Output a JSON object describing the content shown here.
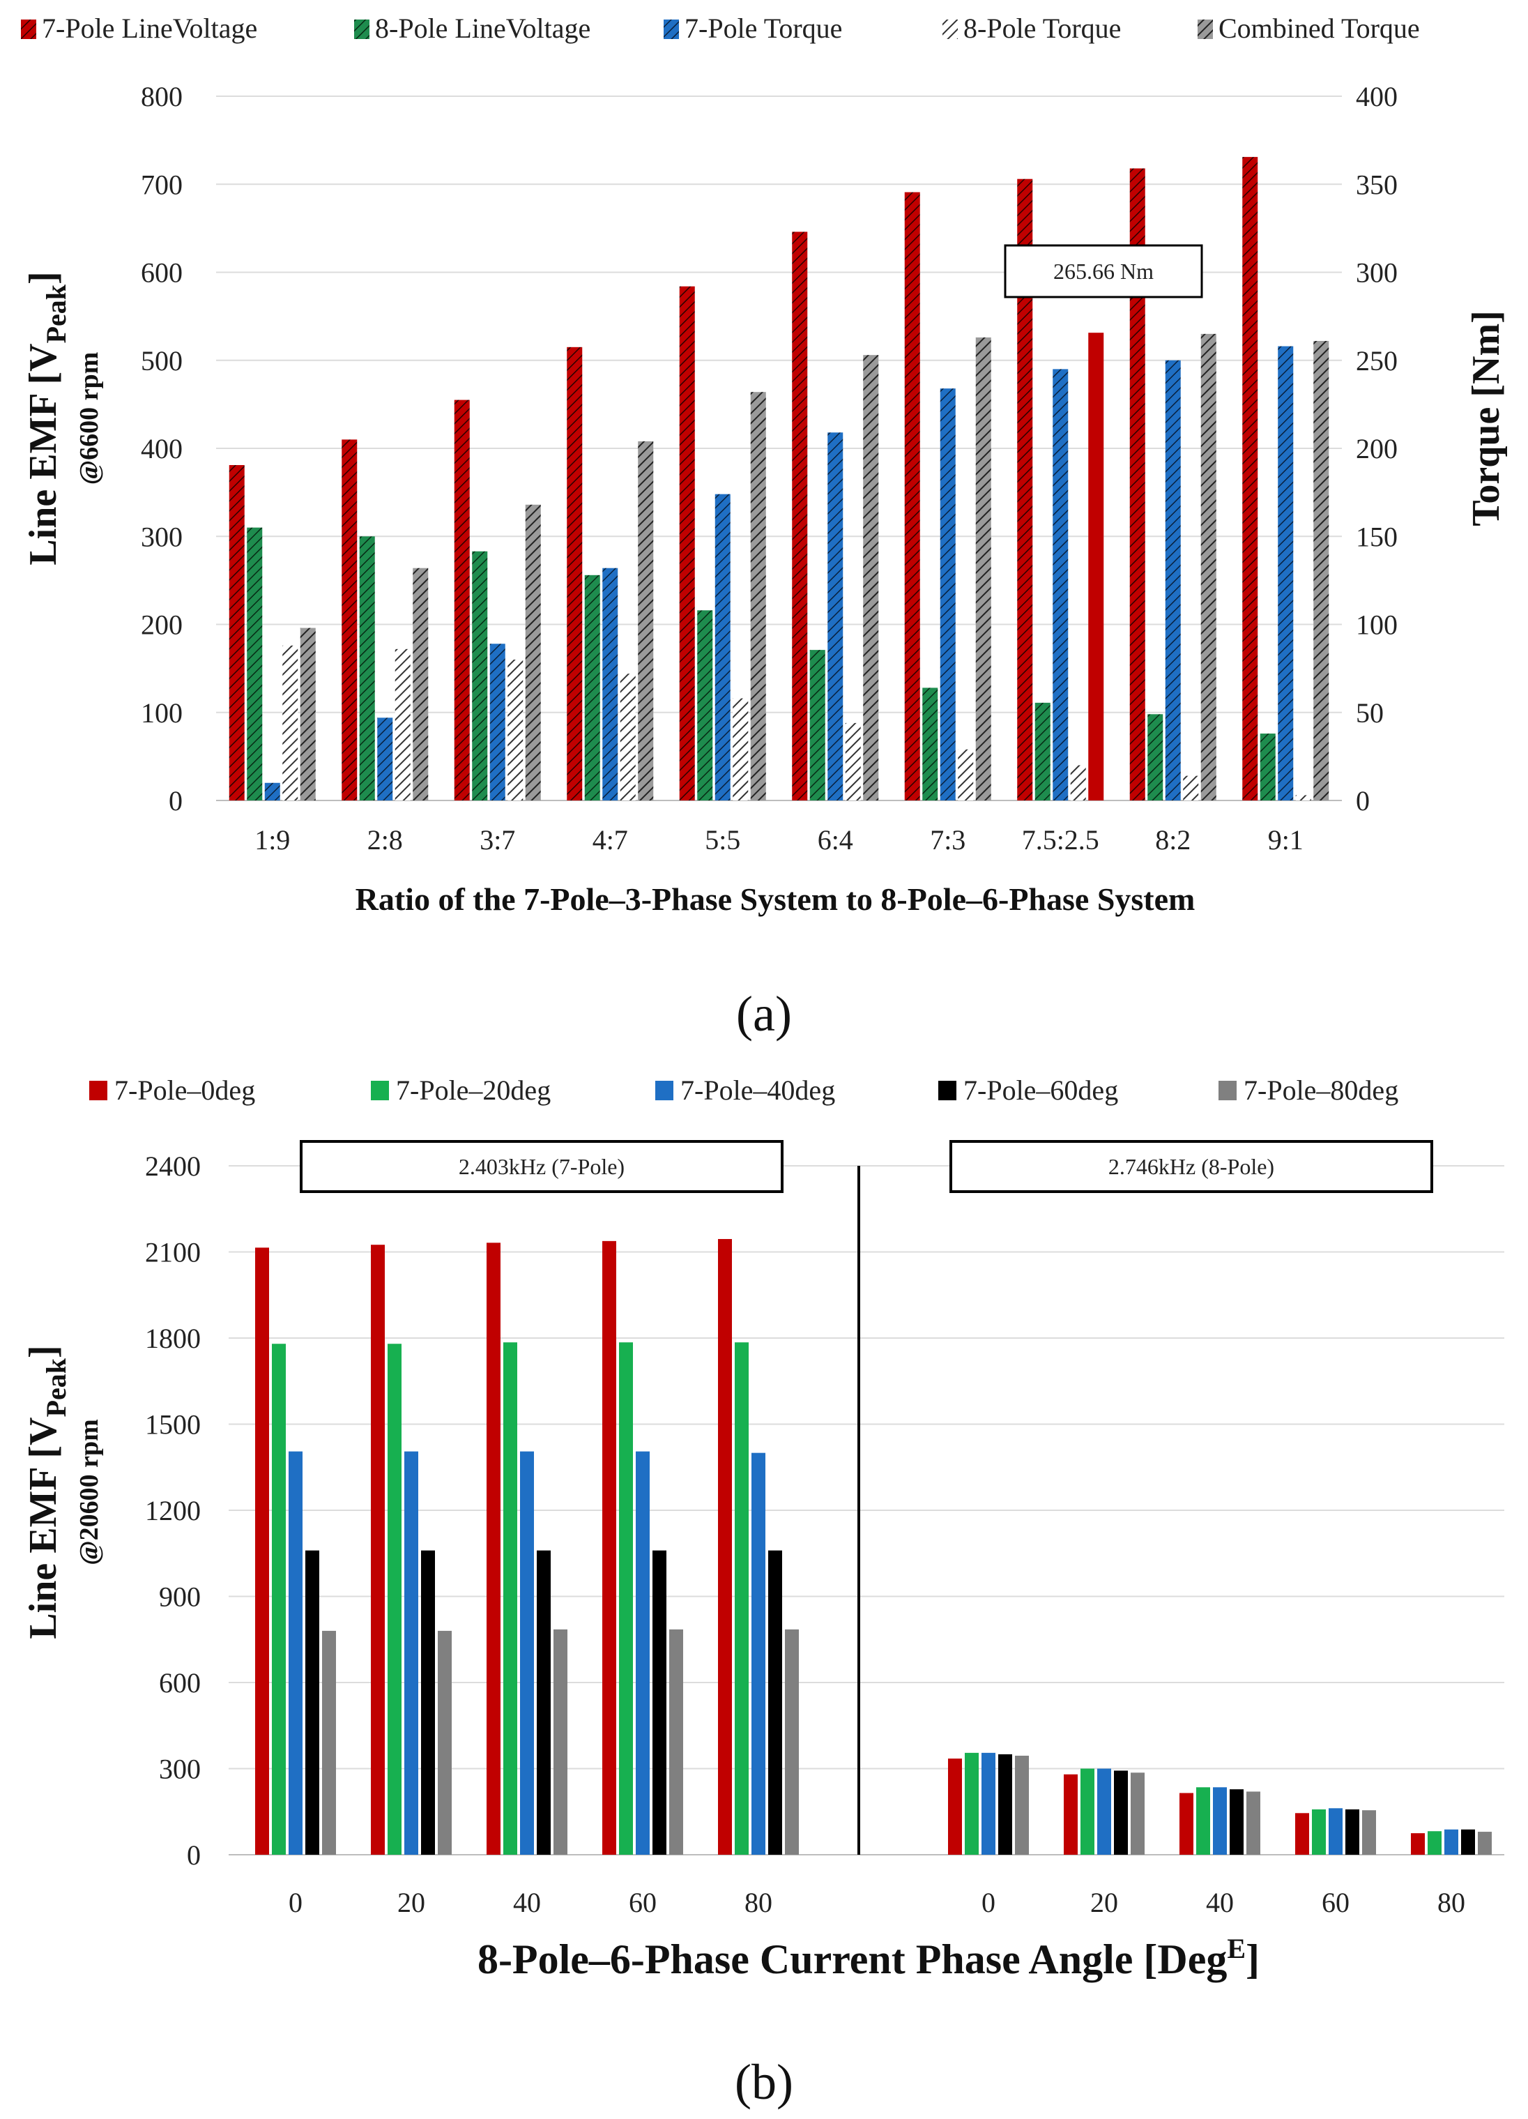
{
  "chart_data": [
    {
      "panel": "a",
      "type": "bar",
      "panel_label": "(a)",
      "xlabel": "Ratio of the 7-Pole–3-Phase System to 8-Pole–6-Phase System",
      "ylabel": "Line EMF [V",
      "ylabel_sub": "Peak",
      "ylabel_close": "]",
      "ylabel2": "@6600 rpm",
      "y2label": "Torque [Nm]",
      "ylim": [
        0,
        800
      ],
      "y2lim": [
        0,
        400
      ],
      "yticks": [
        "0",
        "100",
        "200",
        "300",
        "400",
        "500",
        "600",
        "700",
        "800"
      ],
      "y2ticks": [
        "0",
        "50",
        "100",
        "150",
        "200",
        "250",
        "300",
        "350",
        "400"
      ],
      "categories": [
        "1:9",
        "2:8",
        "3:7",
        "4:7",
        "5:5",
        "6:4",
        "7:3",
        "7.5:2.5",
        "8:2",
        "9:1"
      ],
      "series": [
        {
          "name": "7-Pole LineVoltage",
          "axis": "left",
          "color": "#c00000",
          "pattern": "hatch-red",
          "values": [
            381,
            410,
            455,
            515,
            584,
            646,
            691,
            706,
            718,
            731
          ]
        },
        {
          "name": "8-Pole LineVoltage",
          "axis": "left",
          "color": "#1e8c4e",
          "pattern": "hatch-green",
          "values": [
            310,
            300,
            283,
            256,
            216,
            171,
            128,
            111,
            98,
            76
          ]
        },
        {
          "name": "7-Pole Torque",
          "axis": "right",
          "color": "#1f6fc4",
          "pattern": "hatch-blue",
          "values": [
            10,
            47,
            89,
            132,
            174,
            209,
            234,
            245,
            250,
            258
          ]
        },
        {
          "name": "8-Pole Torque",
          "axis": "right",
          "color": "#555555",
          "pattern": "hatch-white",
          "values": [
            88,
            86,
            80,
            72,
            58,
            44,
            29,
            20,
            14,
            3
          ]
        },
        {
          "name": "Combined Torque",
          "axis": "right",
          "color": "#555555",
          "pattern": "hatch-gray",
          "values": [
            98,
            132,
            168,
            204,
            232,
            253,
            263,
            265.66,
            265,
            261
          ]
        }
      ],
      "annotation": {
        "text": "265.66 Nm",
        "category": "7.5:2.5",
        "value": 265.66,
        "highlight_color": "#c00000"
      }
    },
    {
      "panel": "b",
      "type": "bar",
      "panel_label": "(b)",
      "xlabel": "8-Pole–6-Phase Current Phase Angle [Deg",
      "xlabel_sup": "E",
      "xlabel_close": "]",
      "ylabel": "Line EMF [V",
      "ylabel_sub": "Peak",
      "ylabel_close": "]",
      "ylabel2": "@20600 rpm",
      "ylim": [
        0,
        2400
      ],
      "yticks": [
        "0",
        "300",
        "600",
        "900",
        "1200",
        "1500",
        "1800",
        "2100",
        "2400"
      ],
      "groups": [
        {
          "label": "2.403kHz (7-Pole)",
          "categories": [
            "0",
            "20",
            "40",
            "60",
            "80"
          ]
        },
        {
          "label": "2.746kHz (8-Pole)",
          "categories": [
            "0",
            "20",
            "40",
            "60",
            "80"
          ]
        }
      ],
      "series": [
        {
          "name": "7-Pole–0deg",
          "color": "#c00000",
          "values": [
            2115,
            2125,
            2132,
            2138,
            2145,
            335,
            280,
            215,
            145,
            75
          ]
        },
        {
          "name": "7-Pole–20deg",
          "color": "#17b050",
          "values": [
            1780,
            1780,
            1785,
            1785,
            1785,
            355,
            300,
            235,
            158,
            82
          ]
        },
        {
          "name": "7-Pole–40deg",
          "color": "#1f6fc4",
          "values": [
            1405,
            1405,
            1405,
            1405,
            1400,
            355,
            300,
            235,
            162,
            88
          ]
        },
        {
          "name": "7-Pole–60deg",
          "color": "#000000",
          "values": [
            1060,
            1060,
            1060,
            1060,
            1060,
            350,
            293,
            228,
            158,
            88
          ]
        },
        {
          "name": "7-Pole–80deg",
          "color": "#808080",
          "values": [
            780,
            780,
            785,
            785,
            785,
            345,
            286,
            220,
            155,
            80
          ]
        }
      ]
    }
  ]
}
